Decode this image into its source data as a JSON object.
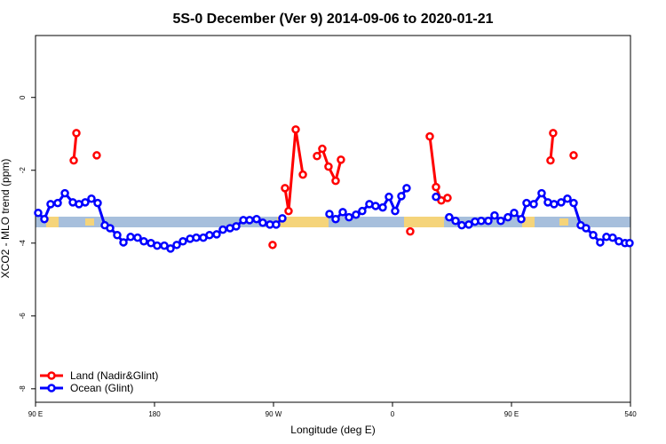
{
  "chart_data": {
    "type": "line",
    "title": "5S-0 December (Ver 9)   2014-09-06 to 2020-01-21",
    "x_label": "Longitude (deg E)",
    "y_label": "XCO2 - MLO trend (ppm)",
    "xlim": [
      90,
      540
    ],
    "ylim": [
      -8.37,
      1.7
    ],
    "xticks": [
      {
        "value": 90,
        "label": "90 E"
      },
      180,
      {
        "value": 270,
        "label": "90 W"
      },
      {
        "value": 360,
        "label": "0"
      },
      {
        "value": 450,
        "label": "90 E"
      },
      540
    ],
    "yticks": [
      -8,
      -6,
      -4,
      -2,
      0
    ],
    "legend": "bottomleft",
    "series": [
      {
        "name": "Land (Nadir&Glint)",
        "color": "#ff0000",
        "x": [
          118.9,
          120.9,
          null,
          136.3,
          null,
          269.3,
          null,
          278.7,
          281.4,
          286.8,
          292.2,
          null,
          302.9,
          306.9,
          311.6,
          317.0,
          321.0,
          null,
          373.4,
          null,
          388.2,
          392.9,
          396.9,
          null,
          401.6,
          null,
          479.5,
          481.5,
          null,
          497.0
        ],
        "values": [
          -1.73,
          -0.98,
          null,
          -1.59,
          null,
          -4.05,
          null,
          -2.49,
          -3.12,
          -0.88,
          -2.12,
          null,
          -1.61,
          -1.41,
          -1.9,
          -2.29,
          -1.71,
          null,
          -3.68,
          null,
          -1.07,
          -2.46,
          -2.83,
          null,
          -2.76,
          null,
          -1.73,
          -0.98,
          null,
          -1.59
        ]
      },
      {
        "name": "Ocean (Glint)",
        "color": "#0000ff",
        "x": [
          92.0,
          96.7,
          101.4,
          106.8,
          112.2,
          118.2,
          122.9,
          127.6,
          132.3,
          137.0,
          142.4,
          146.4,
          151.8,
          156.5,
          161.9,
          167.2,
          171.9,
          177.3,
          182.0,
          187.4,
          192.1,
          196.8,
          201.5,
          206.9,
          211.6,
          216.9,
          221.6,
          227.0,
          231.7,
          237.1,
          241.8,
          247.2,
          251.9,
          257.2,
          261.9,
          267.3,
          272.0,
          276.7,
          null,
          312.3,
          317.0,
          322.4,
          327.1,
          332.4,
          337.1,
          342.5,
          347.2,
          352.6,
          357.3,
          362.0,
          366.7,
          370.7,
          null,
          392.9,
          null,
          402.9,
          407.7,
          412.4,
          417.7,
          422.4,
          427.1,
          432.5,
          437.2,
          441.9,
          447.3,
          452.0,
          457.4,
          461.4,
          466.8,
          472.8,
          477.5,
          482.2,
          487.6,
          492.3,
          497.0,
          502.4,
          506.4,
          511.8,
          517.1,
          521.8,
          526.5,
          531.2,
          535.9,
          539.3
        ],
        "values": [
          -3.17,
          -3.34,
          -2.93,
          -2.9,
          -2.63,
          -2.88,
          -2.93,
          -2.88,
          -2.78,
          -2.9,
          -3.51,
          -3.59,
          -3.78,
          -3.98,
          -3.83,
          -3.85,
          -3.95,
          -4.0,
          -4.07,
          -4.07,
          -4.15,
          -4.05,
          -3.95,
          -3.88,
          -3.85,
          -3.85,
          -3.78,
          -3.76,
          -3.63,
          -3.59,
          -3.54,
          -3.37,
          -3.37,
          -3.34,
          -3.44,
          -3.49,
          -3.49,
          -3.32,
          null,
          -3.2,
          -3.34,
          -3.15,
          -3.29,
          -3.22,
          -3.12,
          -2.93,
          -2.98,
          -3.02,
          -2.73,
          -3.12,
          -2.71,
          -2.49,
          null,
          -2.73,
          null,
          -3.29,
          -3.39,
          -3.51,
          -3.49,
          -3.41,
          -3.39,
          -3.39,
          -3.24,
          -3.39,
          -3.29,
          -3.17,
          -3.34,
          -2.9,
          -2.93,
          -2.63,
          -2.88,
          -2.93,
          -2.88,
          -2.78,
          -2.9,
          -3.51,
          -3.59,
          -3.78,
          -3.98,
          -3.83,
          -3.85,
          -3.95,
          -4.0,
          -4.0
        ]
      }
    ]
  }
}
